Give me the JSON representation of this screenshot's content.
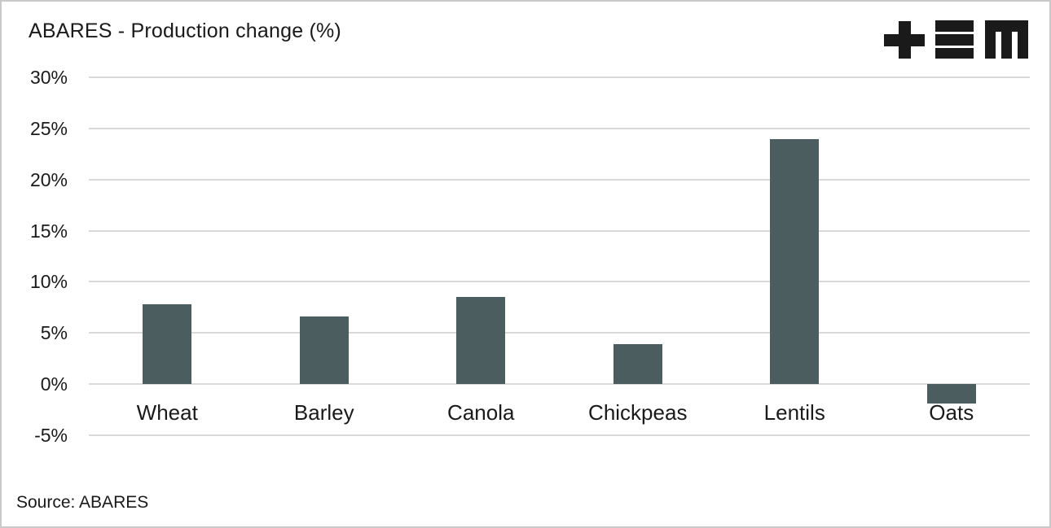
{
  "chart": {
    "title": "ABARES - Production change (%)",
    "source": "Source: ABARES",
    "logo_name": "tem-logo"
  },
  "chart_data": {
    "type": "bar",
    "title": "ABARES - Production change (%)",
    "categories": [
      "Wheat",
      "Barley",
      "Canola",
      "Chickpeas",
      "Lentils",
      "Oats"
    ],
    "values": [
      7.8,
      6.6,
      8.5,
      3.9,
      24,
      -1.9
    ],
    "xlabel": "",
    "ylabel": "",
    "ylim": [
      -5,
      30
    ],
    "yticks": [
      {
        "value": 30,
        "label": "30%"
      },
      {
        "value": 25,
        "label": "25%"
      },
      {
        "value": 20,
        "label": "20%"
      },
      {
        "value": 15,
        "label": "15%"
      },
      {
        "value": 10,
        "label": "10%"
      },
      {
        "value": 5,
        "label": "5%"
      },
      {
        "value": 0,
        "label": "0%"
      },
      {
        "value": -5,
        "label": "-5%"
      }
    ],
    "grid": true,
    "legend": false,
    "bar_color": "#4b5d5f",
    "grid_color": "#d9d9d9",
    "text_color": "#1a1a1a",
    "source": "ABARES"
  }
}
